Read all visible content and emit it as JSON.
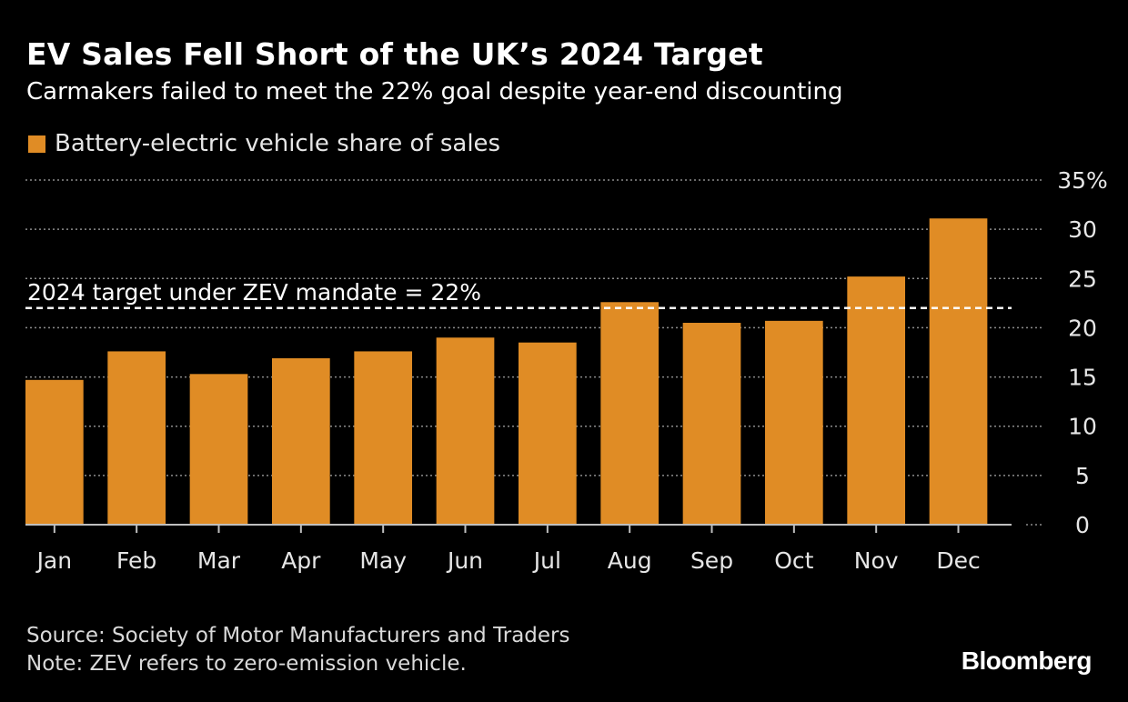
{
  "header": {
    "title": "EV Sales Fell Short of the UK’s 2024 Target",
    "subtitle": "Carmakers failed to meet the 22% goal despite year-end discounting"
  },
  "legend": {
    "label": "Battery-electric vehicle share of sales"
  },
  "footer": {
    "source": "Source: Society of Motor Manufacturers and Traders",
    "note": "Note: ZEV refers to zero-emission vehicle.",
    "brand": "Bloomberg"
  },
  "colors": {
    "background": "#000000",
    "bar": "#e08c25",
    "gridline": "#8c8c8c",
    "target_line": "#ffffff",
    "text": "#ffffff"
  },
  "chart_data": {
    "type": "bar",
    "title": "EV Sales Fell Short of the UK’s 2024 Target",
    "subtitle": "Carmakers failed to meet the 22% goal despite year-end discounting",
    "categories": [
      "Jan",
      "Feb",
      "Mar",
      "Apr",
      "May",
      "Jun",
      "Jul",
      "Aug",
      "Sep",
      "Oct",
      "Nov",
      "Dec"
    ],
    "series": [
      {
        "name": "Battery-electric vehicle share of sales",
        "values": [
          14.7,
          17.6,
          15.3,
          16.9,
          17.6,
          19.0,
          18.5,
          22.6,
          20.5,
          20.7,
          25.2,
          31.1
        ]
      }
    ],
    "yticks": [
      0,
      5,
      10,
      15,
      20,
      25,
      30,
      35
    ],
    "ytick_labels": [
      "0",
      "5",
      "10",
      "15",
      "20",
      "25",
      "30",
      "35%"
    ],
    "ylim": [
      0,
      35
    ],
    "y_axis_position": "right",
    "grid": true,
    "legend_position": "top-left",
    "reference_line": {
      "value": 22,
      "label": "2024 target under ZEV mandate = 22%",
      "style": "dashed"
    }
  }
}
